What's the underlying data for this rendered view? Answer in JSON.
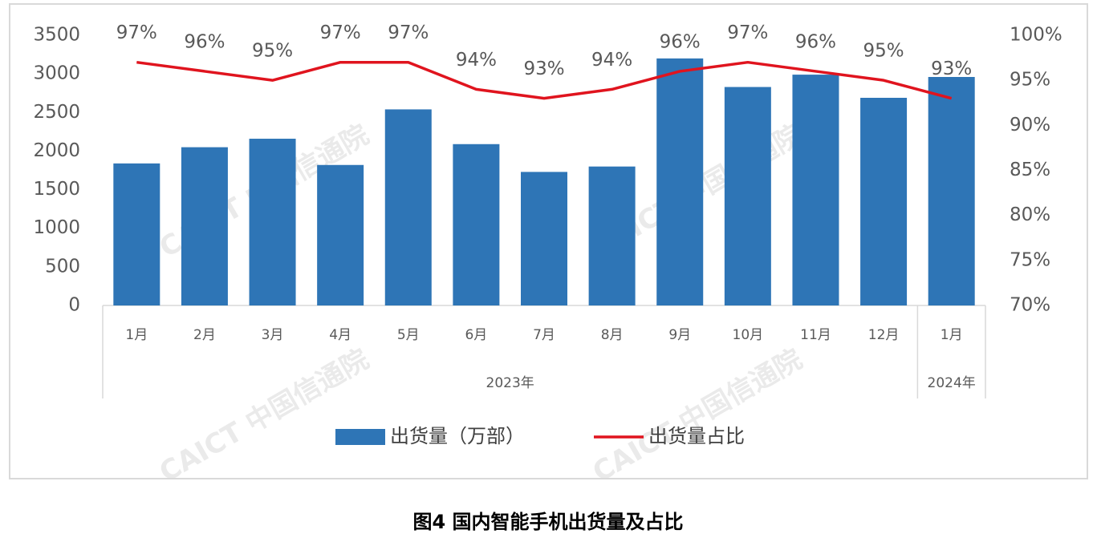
{
  "chart_data": {
    "type": "bar-line",
    "caption": "图4  国内智能手机出货量及占比",
    "watermark": "CAICT 中国信通院",
    "categories": [
      "1月",
      "2月",
      "3月",
      "4月",
      "5月",
      "6月",
      "7月",
      "8月",
      "9月",
      "10月",
      "11月",
      "12月",
      "1月"
    ],
    "groups": [
      {
        "label": "2023年",
        "span": 12
      },
      {
        "label": "2024年",
        "span": 1
      }
    ],
    "series": [
      {
        "name": "出货量（万部）",
        "type": "bar",
        "color": "#2e75b6",
        "values": [
          1840,
          2050,
          2160,
          1820,
          2540,
          2090,
          1730,
          1800,
          3200,
          2830,
          2990,
          2690,
          2960
        ]
      },
      {
        "name": "出货量占比",
        "type": "line",
        "axis": "y2",
        "color": "#e0141e",
        "values": [
          97,
          96,
          95,
          97,
          97,
          94,
          93,
          94,
          96,
          97,
          96,
          95,
          93
        ],
        "value_labels": [
          "97%",
          "96%",
          "95%",
          "97%",
          "97%",
          "94%",
          "93%",
          "94%",
          "96%",
          "97%",
          "96%",
          "95%",
          "93%"
        ]
      }
    ],
    "ylim": [
      0,
      3500
    ],
    "yticks": [
      0,
      500,
      1000,
      1500,
      2000,
      2500,
      3000,
      3500
    ],
    "y2lim": [
      70,
      100
    ],
    "y2ticks": [
      {
        "value": 70,
        "label": "70%"
      },
      {
        "value": 75,
        "label": "75%"
      },
      {
        "value": 80,
        "label": "80%"
      },
      {
        "value": 85,
        "label": "85%"
      },
      {
        "value": 90,
        "label": "90%"
      },
      {
        "value": 95,
        "label": "95%"
      },
      {
        "value": 100,
        "label": "100%"
      }
    ],
    "legend": "bottom"
  }
}
